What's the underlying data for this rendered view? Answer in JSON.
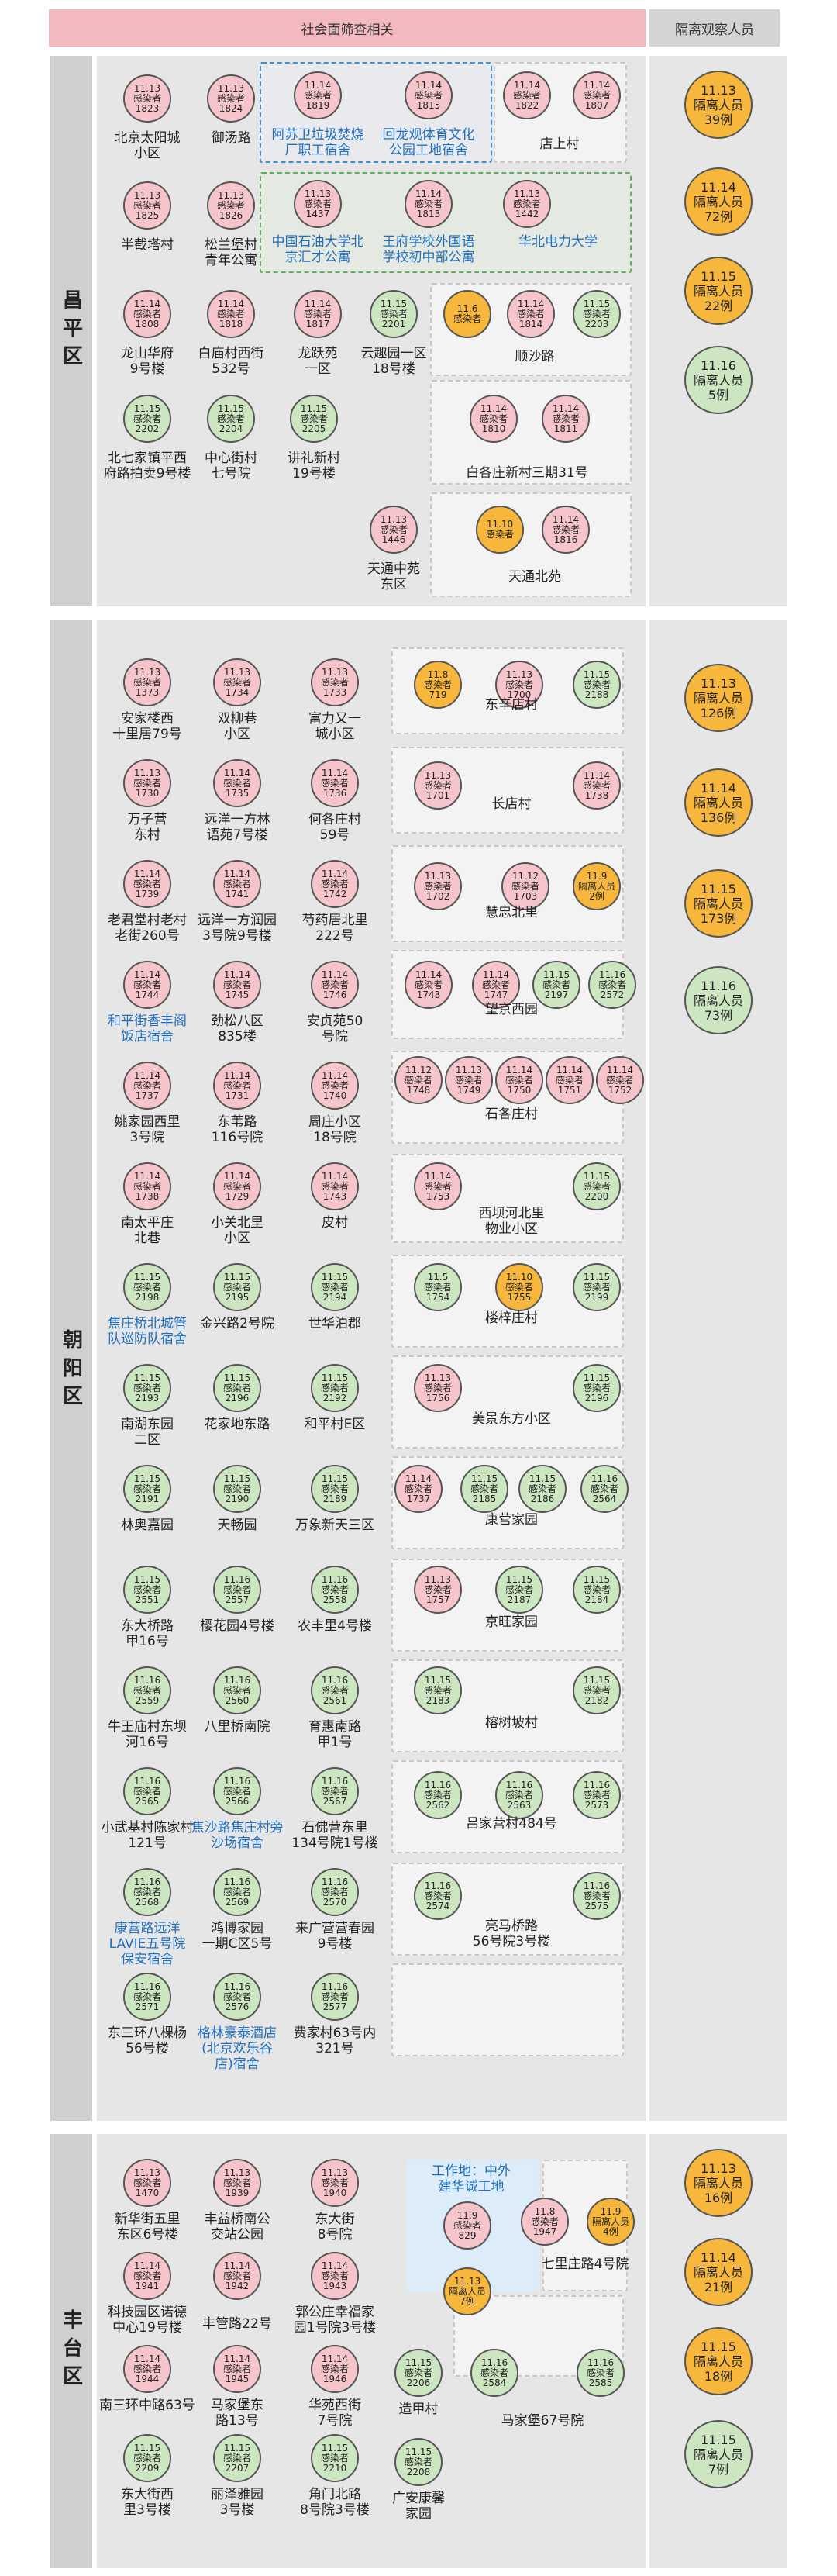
{
  "header": {
    "left": "社会面筛查相关",
    "right": "隔离观察人员"
  },
  "districts": {
    "changping": "昌平区",
    "chaoyang": "朝阳区",
    "fengtai": "丰台区"
  },
  "circle_text": {
    "infected": "感染者",
    "isolated": "隔离人员"
  },
  "changping": {
    "circles": [
      {
        "d": "11.13",
        "n": "1823",
        "t": "p"
      },
      {
        "d": "11.13",
        "n": "1824",
        "t": "p"
      },
      {
        "d": "11.14",
        "n": "1819",
        "t": "p"
      },
      {
        "d": "11.14",
        "n": "1815",
        "t": "p"
      },
      {
        "d": "11.14",
        "n": "1822",
        "t": "p"
      },
      {
        "d": "11.14",
        "n": "1807",
        "t": "p"
      },
      {
        "d": "11.13",
        "n": "1825",
        "t": "p"
      },
      {
        "d": "11.13",
        "n": "1826",
        "t": "p"
      },
      {
        "d": "11.13",
        "n": "1437",
        "t": "p"
      },
      {
        "d": "11.14",
        "n": "1813",
        "t": "p"
      },
      {
        "d": "11.13",
        "n": "1442",
        "t": "p"
      },
      {
        "d": "11.14",
        "n": "1808",
        "t": "p"
      },
      {
        "d": "11.14",
        "n": "1818",
        "t": "p"
      },
      {
        "d": "11.14",
        "n": "1817",
        "t": "p"
      },
      {
        "d": "11.15",
        "n": "2201",
        "t": "g"
      },
      {
        "d": "11.6",
        "n": "感染者",
        "t": "o"
      },
      {
        "d": "11.14",
        "n": "1814",
        "t": "p"
      },
      {
        "d": "11.15",
        "n": "2203",
        "t": "g"
      },
      {
        "d": "11.15",
        "n": "2202",
        "t": "g"
      },
      {
        "d": "11.15",
        "n": "2204",
        "t": "g"
      },
      {
        "d": "11.15",
        "n": "2205",
        "t": "g"
      },
      {
        "d": "11.14",
        "n": "1810",
        "t": "p"
      },
      {
        "d": "11.14",
        "n": "1811",
        "t": "p"
      },
      {
        "d": "11.13",
        "n": "1446",
        "t": "p"
      },
      {
        "d": "11.10",
        "n": "感染者",
        "t": "o"
      },
      {
        "d": "11.14",
        "n": "1816",
        "t": "p"
      }
    ],
    "labels": [
      "北京太阳城\n小区",
      "御汤路",
      "阿苏卫垃圾焚烧\n厂职工宿舍",
      "回龙观体育文化\n公园工地宿舍",
      "店上村",
      "半截塔村",
      "松兰堡村\n青年公寓",
      "中国石油大学北\n京汇才公寓",
      "王府学校外国语\n学校初中部公寓",
      "华北电力大学",
      "龙山华府\n9号楼",
      "白庙村西街\n532号",
      "龙跃苑\n一区",
      "云趣园一区\n18号楼",
      "顺沙路",
      "中心街村\n七号院",
      "讲礼新村\n19号楼",
      "北七家镇平西\n府路拍卖9号楼",
      "白各庄新村三期31号",
      "天通中苑\n东区",
      "天通北苑"
    ],
    "iso": [
      {
        "d": "11.13",
        "l": "隔离人员",
        "n": "39例",
        "t": "o"
      },
      {
        "d": "11.14",
        "l": "隔离人员",
        "n": "72例",
        "t": "o"
      },
      {
        "d": "11.15",
        "l": "隔离人员",
        "n": "22例",
        "t": "o"
      },
      {
        "d": "11.16",
        "l": "隔离人员",
        "n": "5例",
        "t": "g"
      }
    ]
  },
  "chaoyang": {
    "labels": [
      "安家楼西\n十里居79号",
      "双柳巷\n小区",
      "富力又一\n城小区",
      "东辛店村",
      "万子营\n东村",
      "远洋一方林\n语苑7号楼",
      "何各庄村\n59号",
      "长店村",
      "老君堂村老村\n老街260号",
      "远洋一方润园\n3号院9号楼",
      "芍药居北里\n222号",
      "慧忠北里",
      "和平街香丰阁\n饭店宿舍",
      "劲松八区\n835楼",
      "安贞苑50\n号院",
      "望京西园",
      "姚家园西里\n3号院",
      "东苇路\n116号院",
      "周庄小区\n18号院",
      "石各庄村",
      "南太平庄\n北巷",
      "小关北里\n小区",
      "皮村",
      "西坝河北里\n物业小区",
      "焦庄桥北城管\n队巡防队宿舍",
      "金兴路2号院",
      "世华泊郡",
      "楼梓庄村",
      "南湖东园\n二区",
      "花家地东路",
      "和平村E区",
      "美景东方小区",
      "林奥嘉园",
      "天畅园",
      "万象新天三区",
      "康营家园",
      "东大桥路\n甲16号",
      "樱花园4号楼",
      "农丰里4号楼",
      "京旺家园",
      "牛王庙村东坝\n河16号",
      "八里桥南院",
      "育惠南路\n甲1号",
      "榕树坡村",
      "小武基村陈家村\n121号",
      "焦沙路焦庄村旁\n沙场宿舍",
      "石佛营东里\n134号院1号楼",
      "吕家营村484号",
      "康营路远洋\nLAVIE五号院\n保安宿舍",
      "鸿博家园\n一期C区5号",
      "来广营营春园\n9号楼",
      "亮马桥路\n56号院3号楼",
      "东三环八棵杨\n56号楼",
      "格林豪泰酒店\n(北京欢乐谷\n店)宿舍",
      "费家村63号内\n321号"
    ],
    "iso": [
      {
        "d": "11.13",
        "l": "隔离人员",
        "n": "126例",
        "t": "o"
      },
      {
        "d": "11.14",
        "l": "隔离人员",
        "n": "136例",
        "t": "o"
      },
      {
        "d": "11.15",
        "l": "隔离人员",
        "n": "173例",
        "t": "o"
      },
      {
        "d": "11.16",
        "l": "隔离人员",
        "n": "73例",
        "t": "g"
      }
    ]
  },
  "fengtai": {
    "labels": [
      "新华街五里\n东区6号楼",
      "丰益桥南公\n交站公园",
      "东大街\n8号院",
      "工作地：中外\n建华诚工地",
      "七里庄路4号院",
      "科技园区诺德\n中心19号楼",
      "丰管路22号",
      "郭公庄幸福家\n园1号院3号楼",
      "南三环中路63号",
      "马家堡东\n路13号",
      "华苑西街\n7号院",
      "造甲村",
      "马家堡67号院",
      "东大街西\n里3号楼",
      "丽泽雅园\n3号楼",
      "角门北路\n8号院3号楼",
      "广安康馨\n家园"
    ],
    "iso": [
      {
        "d": "11.13",
        "l": "隔离人员",
        "n": "16例",
        "t": "o"
      },
      {
        "d": "11.14",
        "l": "隔离人员",
        "n": "21例",
        "t": "o"
      },
      {
        "d": "11.15",
        "l": "隔离人员",
        "n": "18例",
        "t": "o"
      },
      {
        "d": "11.15",
        "l": "隔离人员",
        "n": "7例",
        "t": "g"
      }
    ]
  }
}
